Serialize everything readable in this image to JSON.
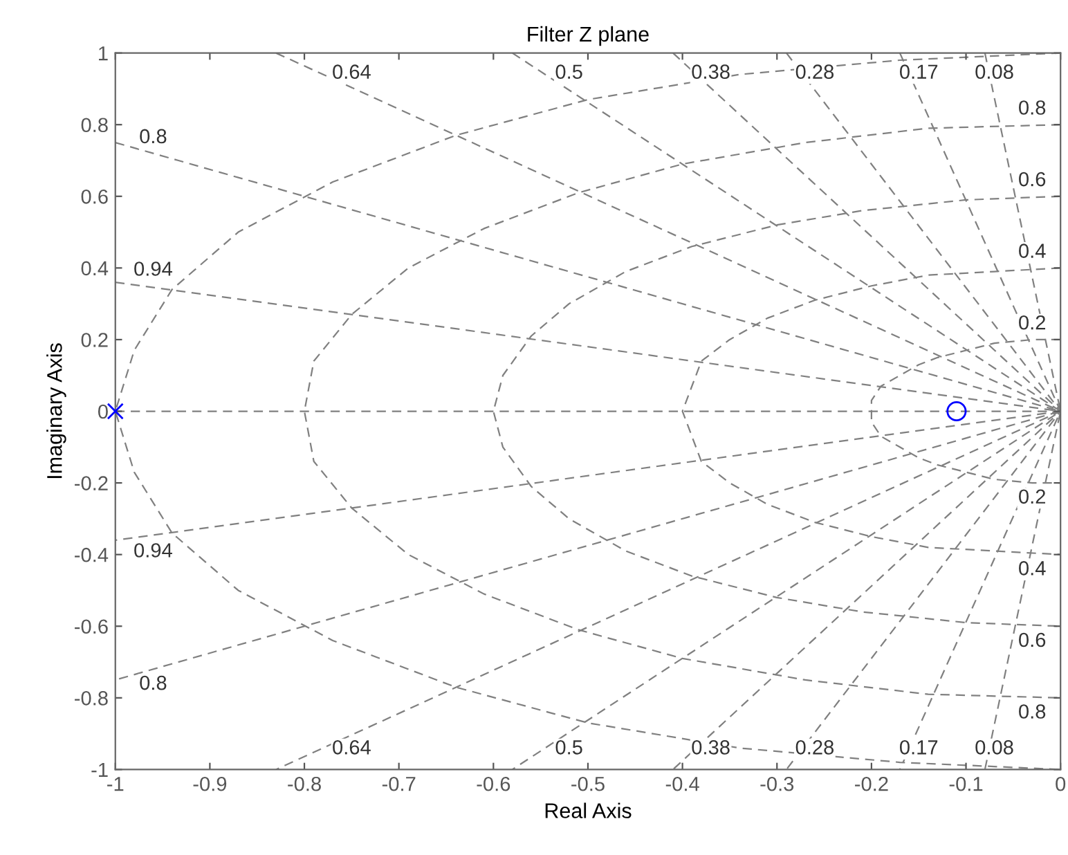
{
  "chart_data": {
    "type": "scatter",
    "title": "Filter Z plane",
    "xlabel": "Real Axis",
    "ylabel": "Imaginary Axis",
    "xlim": [
      -1,
      0
    ],
    "ylim": [
      -1,
      1
    ],
    "xticks": [
      -1,
      -0.9,
      -0.8,
      -0.7,
      -0.6,
      -0.5,
      -0.4,
      -0.3,
      -0.2,
      -0.1,
      0
    ],
    "yticks": [
      -1,
      -0.8,
      -0.6,
      -0.4,
      -0.2,
      0,
      0.2,
      0.4,
      0.6,
      0.8,
      1
    ],
    "grid": false,
    "legend": false,
    "series": [
      {
        "type": "line",
        "line_style": "dashed",
        "color": "#808080",
        "x": [
          -1,
          0
        ],
        "values": [
          0,
          0
        ]
      },
      {
        "type": "line",
        "line_style": "dashed",
        "color": "#808080",
        "x": [
          -0.08,
          0,
          -0.08
        ],
        "values": [
          1,
          0,
          -1
        ]
      },
      {
        "type": "line",
        "line_style": "dashed",
        "color": "#808080",
        "x": [
          -0.17,
          0,
          -0.17
        ],
        "values": [
          1,
          0,
          -1
        ]
      },
      {
        "type": "line",
        "line_style": "dashed",
        "color": "#808080",
        "x": [
          -0.29,
          0,
          -0.29
        ],
        "values": [
          1,
          0,
          -1
        ]
      },
      {
        "type": "line",
        "line_style": "dashed",
        "color": "#808080",
        "x": [
          -0.41,
          0,
          -0.41
        ],
        "values": [
          1,
          0,
          -1
        ]
      },
      {
        "type": "line",
        "line_style": "dashed",
        "color": "#808080",
        "x": [
          -0.58,
          0,
          -0.58
        ],
        "values": [
          1,
          0,
          -1
        ]
      },
      {
        "type": "line",
        "line_style": "dashed",
        "color": "#808080",
        "x": [
          -0.83,
          0,
          -0.83
        ],
        "values": [
          1,
          0,
          -1
        ]
      },
      {
        "type": "line",
        "line_style": "dashed",
        "color": "#808080",
        "x": [
          -1,
          0,
          -1
        ],
        "values": [
          0.75,
          0,
          -0.75
        ]
      },
      {
        "type": "line",
        "line_style": "dashed",
        "color": "#808080",
        "x": [
          -1,
          0,
          -1
        ],
        "values": [
          0.36,
          0,
          -0.36
        ]
      },
      {
        "type": "line",
        "line_style": "dashed",
        "color": "#808080",
        "x": [
          0,
          -0.03,
          -0.07,
          -0.1,
          -0.13,
          -0.15,
          -0.17,
          -0.19,
          -0.2,
          -0.2,
          -0.2,
          -0.19,
          -0.17,
          -0.15,
          -0.13,
          -0.1,
          -0.07,
          -0.03,
          0
        ],
        "values": [
          0.2,
          0.2,
          0.19,
          0.17,
          0.15,
          0.13,
          0.1,
          0.07,
          0.03,
          0,
          -0.03,
          -0.07,
          -0.1,
          -0.13,
          -0.15,
          -0.17,
          -0.19,
          -0.2,
          -0.2
        ]
      },
      {
        "type": "line",
        "line_style": "dashed",
        "color": "#808080",
        "x": [
          0,
          -0.07,
          -0.14,
          -0.2,
          -0.26,
          -0.31,
          -0.35,
          -0.38,
          -0.39,
          -0.4,
          -0.39,
          -0.38,
          -0.35,
          -0.31,
          -0.26,
          -0.2,
          -0.14,
          -0.07,
          0
        ],
        "values": [
          0.4,
          0.39,
          0.38,
          0.35,
          0.31,
          0.26,
          0.2,
          0.14,
          0.07,
          0,
          -0.07,
          -0.14,
          -0.2,
          -0.26,
          -0.31,
          -0.35,
          -0.38,
          -0.39,
          -0.4
        ]
      },
      {
        "type": "line",
        "line_style": "dashed",
        "color": "#808080",
        "x": [
          0,
          -0.1,
          -0.21,
          -0.3,
          -0.39,
          -0.46,
          -0.52,
          -0.56,
          -0.59,
          -0.6,
          -0.59,
          -0.56,
          -0.52,
          -0.46,
          -0.39,
          -0.3,
          -0.21,
          -0.1,
          0
        ],
        "values": [
          0.6,
          0.59,
          0.56,
          0.52,
          0.46,
          0.39,
          0.3,
          0.21,
          0.1,
          0,
          -0.1,
          -0.21,
          -0.3,
          -0.39,
          -0.46,
          -0.52,
          -0.56,
          -0.59,
          -0.6
        ]
      },
      {
        "type": "line",
        "line_style": "dashed",
        "color": "#808080",
        "x": [
          0,
          -0.14,
          -0.27,
          -0.4,
          -0.51,
          -0.61,
          -0.69,
          -0.75,
          -0.79,
          -0.8,
          -0.79,
          -0.75,
          -0.69,
          -0.61,
          -0.51,
          -0.4,
          -0.27,
          -0.14,
          0
        ],
        "values": [
          0.8,
          0.79,
          0.75,
          0.69,
          0.61,
          0.51,
          0.4,
          0.27,
          0.14,
          0,
          -0.14,
          -0.27,
          -0.4,
          -0.51,
          -0.61,
          -0.69,
          -0.75,
          -0.79,
          -0.8
        ]
      },
      {
        "type": "line",
        "line_style": "dashed",
        "color": "#808080",
        "x": [
          0,
          -0.17,
          -0.34,
          -0.5,
          -0.64,
          -0.77,
          -0.87,
          -0.94,
          -0.98,
          -1,
          -0.98,
          -0.94,
          -0.87,
          -0.77,
          -0.64,
          -0.5,
          -0.34,
          -0.17,
          0
        ],
        "values": [
          1,
          0.98,
          0.94,
          0.87,
          0.77,
          0.64,
          0.5,
          0.34,
          0.17,
          0,
          -0.17,
          -0.34,
          -0.5,
          -0.64,
          -0.77,
          -0.87,
          -0.94,
          -0.98,
          -1
        ]
      },
      {
        "marker": "cross",
        "color": "#0000ff",
        "x": [
          -1
        ],
        "values": [
          0
        ]
      },
      {
        "marker": "circle",
        "color": "#0000ff",
        "x": [
          -0.11
        ],
        "values": [
          0
        ]
      }
    ],
    "annotations": [
      {
        "text": "0.64",
        "x": -0.75,
        "y": 0.9
      },
      {
        "text": "0.5",
        "x": -0.52,
        "y": 0.9
      },
      {
        "text": "0.38",
        "x": -0.37,
        "y": 0.9
      },
      {
        "text": "0.28",
        "x": -0.26,
        "y": 0.9
      },
      {
        "text": "0.17",
        "x": -0.15,
        "y": 0.9
      },
      {
        "text": "0.08",
        "x": -0.07,
        "y": 0.9
      },
      {
        "text": "0.8",
        "x": -0.96,
        "y": 0.72
      },
      {
        "text": "0.94",
        "x": -0.96,
        "y": 0.35
      },
      {
        "text": "0.8",
        "x": -0.03,
        "y": 0.8
      },
      {
        "text": "0.6",
        "x": -0.03,
        "y": 0.6
      },
      {
        "text": "0.4",
        "x": -0.03,
        "y": 0.4
      },
      {
        "text": "0.2",
        "x": -0.03,
        "y": 0.2
      },
      {
        "text": "0.2",
        "x": -0.03,
        "y": -0.2
      },
      {
        "text": "0.4",
        "x": -0.03,
        "y": -0.4
      },
      {
        "text": "0.6",
        "x": -0.03,
        "y": -0.6
      },
      {
        "text": "0.8",
        "x": -0.03,
        "y": -0.8
      },
      {
        "text": "0.8",
        "x": -0.96,
        "y": -0.72
      },
      {
        "text": "0.94",
        "x": -0.96,
        "y": -0.35
      },
      {
        "text": "0.64",
        "x": -0.75,
        "y": -0.9
      },
      {
        "text": "0.5",
        "x": -0.52,
        "y": -0.9
      },
      {
        "text": "0.38",
        "x": -0.37,
        "y": -0.9
      },
      {
        "text": "0.28",
        "x": -0.26,
        "y": -0.9
      },
      {
        "text": "0.17",
        "x": -0.15,
        "y": -0.9
      },
      {
        "text": "0.08",
        "x": -0.07,
        "y": -0.9
      }
    ]
  }
}
